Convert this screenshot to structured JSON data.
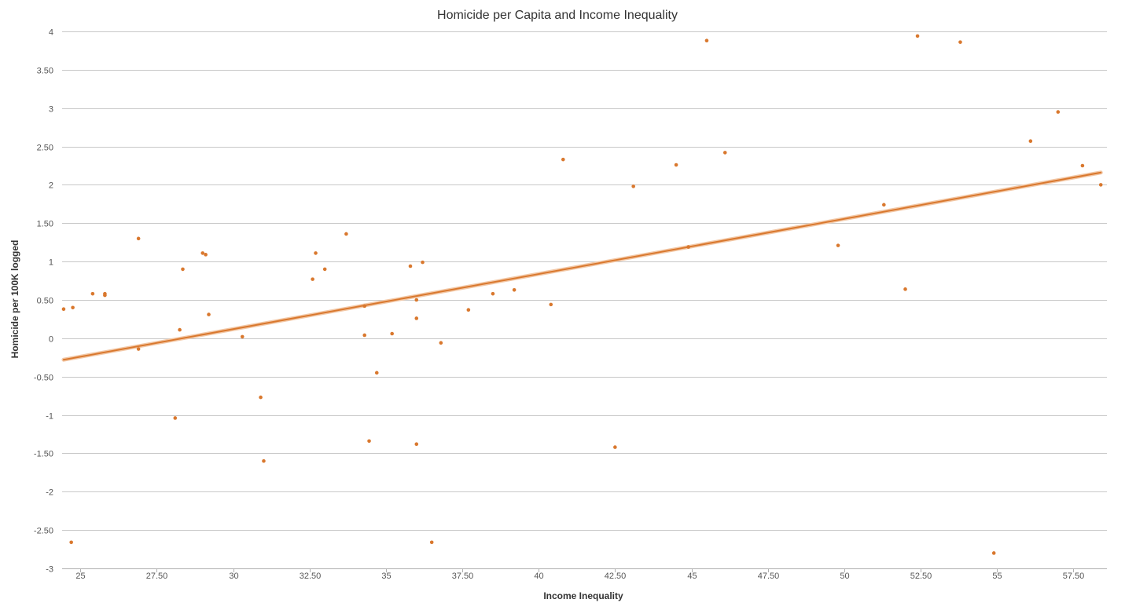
{
  "chart_data": {
    "type": "scatter",
    "title": "Homicide per Capita and Income Inequality",
    "xlabel": "Income Inequality",
    "ylabel": "Homicide per 100K logged",
    "xlim": [
      24.4,
      58.6
    ],
    "ylim": [
      -3,
      4
    ],
    "x_ticks": [
      25,
      27.5,
      30,
      32.5,
      35,
      37.5,
      40,
      42.5,
      45,
      47.5,
      50,
      52.5,
      55,
      57.5
    ],
    "x_tick_labels": [
      "25",
      "27.50",
      "30",
      "32.50",
      "35",
      "37.50",
      "40",
      "42.50",
      "45",
      "47.50",
      "50",
      "52.50",
      "55",
      "57.50"
    ],
    "y_ticks": [
      4,
      3.5,
      3,
      2.5,
      2,
      1.5,
      1,
      0.5,
      0,
      -0.5,
      -1,
      -1.5,
      -2,
      -2.5,
      -3
    ],
    "y_tick_labels": [
      "4",
      "3.50",
      "3",
      "2.50",
      "2",
      "1.50",
      "1",
      "0.50",
      "0",
      "-0.50",
      "-1",
      "-1.50",
      "-2",
      "-2.50",
      "-3"
    ],
    "grid": true,
    "legend": "none",
    "series": [
      {
        "color": "#d9782e",
        "points": [
          {
            "x": 24.45,
            "y": 0.38
          },
          {
            "x": 24.75,
            "y": 0.4
          },
          {
            "x": 24.7,
            "y": -2.66
          },
          {
            "x": 25.4,
            "y": 0.58
          },
          {
            "x": 25.8,
            "y": 0.58
          },
          {
            "x": 25.8,
            "y": 0.56
          },
          {
            "x": 26.9,
            "y": 1.3
          },
          {
            "x": 26.9,
            "y": -0.14
          },
          {
            "x": 28.1,
            "y": -1.04
          },
          {
            "x": 28.25,
            "y": 0.11
          },
          {
            "x": 28.35,
            "y": 0.9
          },
          {
            "x": 29.0,
            "y": 1.11
          },
          {
            "x": 29.1,
            "y": 1.09
          },
          {
            "x": 29.2,
            "y": 0.31
          },
          {
            "x": 30.3,
            "y": 0.02
          },
          {
            "x": 30.9,
            "y": -0.77
          },
          {
            "x": 31.0,
            "y": -1.6
          },
          {
            "x": 32.6,
            "y": 0.77
          },
          {
            "x": 32.7,
            "y": 1.11
          },
          {
            "x": 33.0,
            "y": 0.9
          },
          {
            "x": 33.7,
            "y": 1.36
          },
          {
            "x": 34.3,
            "y": 0.42
          },
          {
            "x": 34.3,
            "y": 0.04
          },
          {
            "x": 34.45,
            "y": -1.34
          },
          {
            "x": 34.7,
            "y": -0.45
          },
          {
            "x": 35.2,
            "y": 0.06
          },
          {
            "x": 35.8,
            "y": 0.94
          },
          {
            "x": 36.0,
            "y": 0.5
          },
          {
            "x": 36.0,
            "y": 0.26
          },
          {
            "x": 36.0,
            "y": -1.38
          },
          {
            "x": 36.2,
            "y": 0.99
          },
          {
            "x": 36.5,
            "y": -2.66
          },
          {
            "x": 36.8,
            "y": -0.06
          },
          {
            "x": 37.7,
            "y": 0.37
          },
          {
            "x": 38.5,
            "y": 0.58
          },
          {
            "x": 39.2,
            "y": 0.63
          },
          {
            "x": 40.4,
            "y": 0.44
          },
          {
            "x": 40.8,
            "y": 2.33
          },
          {
            "x": 42.5,
            "y": -1.42
          },
          {
            "x": 43.1,
            "y": 1.98
          },
          {
            "x": 44.5,
            "y": 2.26
          },
          {
            "x": 44.9,
            "y": 1.19
          },
          {
            "x": 45.5,
            "y": 3.88
          },
          {
            "x": 46.1,
            "y": 2.42
          },
          {
            "x": 49.8,
            "y": 1.21
          },
          {
            "x": 51.3,
            "y": 1.74
          },
          {
            "x": 52.0,
            "y": 0.64
          },
          {
            "x": 52.4,
            "y": 3.94
          },
          {
            "x": 53.8,
            "y": 3.86
          },
          {
            "x": 54.9,
            "y": -2.8
          },
          {
            "x": 56.1,
            "y": 2.57
          },
          {
            "x": 57.0,
            "y": 2.95
          },
          {
            "x": 57.8,
            "y": 2.25
          },
          {
            "x": 58.4,
            "y": 2.0
          }
        ]
      }
    ],
    "trendline": {
      "color": "#d9782e",
      "start": {
        "x": 24.45,
        "y": -0.28
      },
      "end": {
        "x": 58.4,
        "y": 2.16
      }
    }
  }
}
